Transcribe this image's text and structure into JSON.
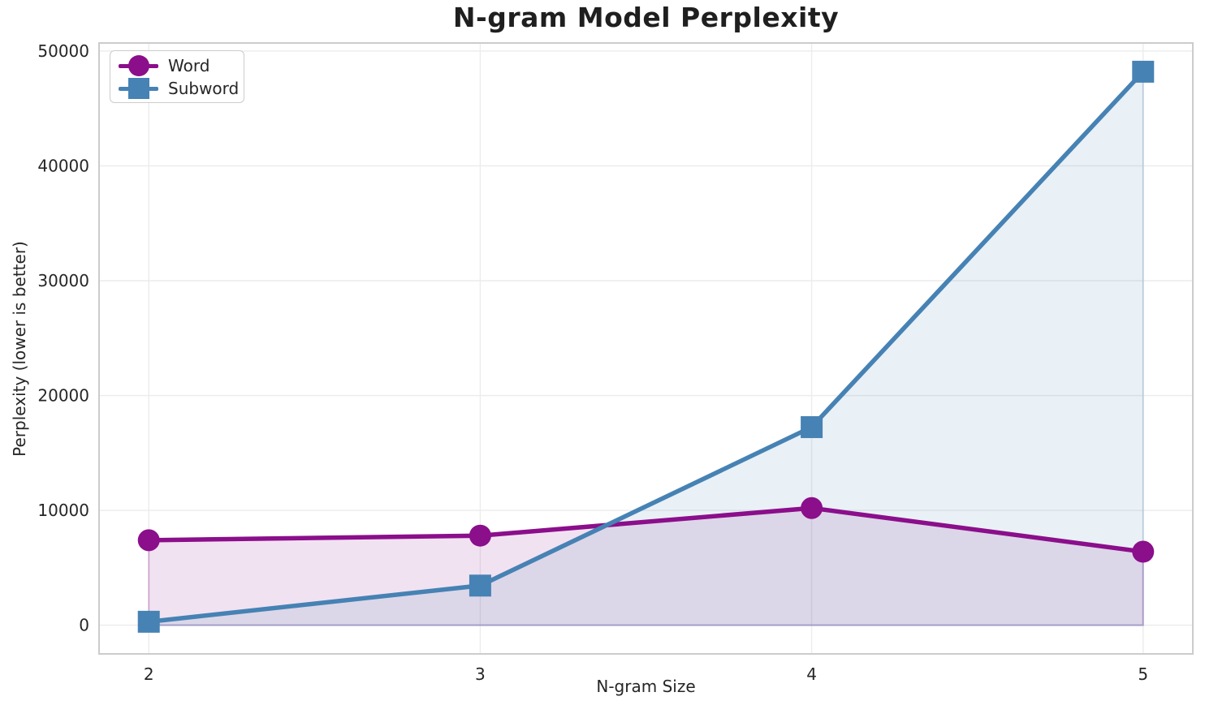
{
  "title": "N-gram Model Perplexity",
  "chart_data": {
    "type": "line",
    "title": "N-gram Model Perplexity",
    "xlabel": "N-gram Size",
    "ylabel": "Perplexity (lower is better)",
    "x": [
      2,
      3,
      4,
      5
    ],
    "series": [
      {
        "name": "Word",
        "marker": "circle",
        "color": "#8B0E8B",
        "values": [
          7400,
          7800,
          10200,
          6400
        ]
      },
      {
        "name": "Subword",
        "marker": "square",
        "color": "#4682B4",
        "values": [
          300,
          3450,
          17250,
          48200
        ]
      }
    ],
    "xticks": [
      "2",
      "3",
      "4",
      "5"
    ],
    "xtick_values": [
      2,
      3,
      4,
      5
    ],
    "yticks": [
      "0",
      "10000",
      "20000",
      "30000",
      "40000",
      "50000"
    ],
    "ytick_values": [
      0,
      10000,
      20000,
      30000,
      40000,
      50000
    ],
    "xlim": [
      1.85,
      5.15
    ],
    "ylim": [
      -2500,
      50700
    ],
    "grid": true,
    "fill_under_lines": true,
    "fill_opacity": 0.12,
    "legend_position": "upper left",
    "grid_color": "#ececec",
    "spine_color": "#cccccc",
    "text_color": "#262626"
  }
}
